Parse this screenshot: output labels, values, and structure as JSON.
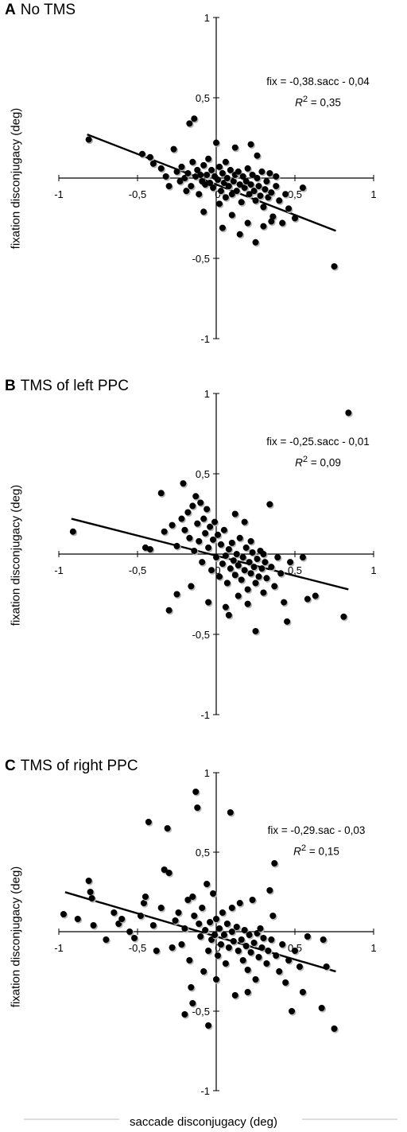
{
  "chart_data": [
    {
      "type": "scatter",
      "panel_letter": "A",
      "title": "No TMS",
      "ylabel": "fixation disconjugacy (deg)",
      "xlim": [
        -1,
        1
      ],
      "ylim": [
        -1,
        1
      ],
      "x_ticks": [
        "-1",
        "-0,5",
        "0",
        "0,5",
        "1"
      ],
      "y_ticks": [
        "1",
        "0,5",
        "-0,5",
        "-1"
      ],
      "equation": "fix = -0,38.sacc - 0,04",
      "r2_label": "R",
      "r2_value": " = 0,35",
      "fit": {
        "slope": -0.38,
        "intercept": -0.04,
        "x_range": [
          -0.82,
          0.76
        ]
      },
      "points": [
        [
          -0.81,
          0.24
        ],
        [
          -0.47,
          0.15
        ],
        [
          -0.42,
          0.13
        ],
        [
          -0.4,
          0.09
        ],
        [
          -0.35,
          0.06
        ],
        [
          -0.32,
          0.01
        ],
        [
          -0.3,
          -0.05
        ],
        [
          -0.27,
          0.18
        ],
        [
          -0.25,
          0.04
        ],
        [
          -0.23,
          -0.02
        ],
        [
          -0.22,
          0.07
        ],
        [
          -0.2,
          0.0
        ],
        [
          -0.19,
          -0.08
        ],
        [
          -0.18,
          0.03
        ],
        [
          -0.17,
          0.34
        ],
        [
          -0.16,
          -0.05
        ],
        [
          -0.15,
          0.1
        ],
        [
          -0.14,
          0.37
        ],
        [
          -0.13,
          0.01
        ],
        [
          -0.12,
          0.05
        ],
        [
          -0.11,
          -0.1
        ],
        [
          -0.1,
          0.02
        ],
        [
          -0.09,
          -0.02
        ],
        [
          -0.08,
          0.08
        ],
        [
          -0.07,
          -0.04
        ],
        [
          -0.06,
          0.02
        ],
        [
          -0.05,
          0.12
        ],
        [
          -0.04,
          -0.03
        ],
        [
          -0.03,
          0.05
        ],
        [
          -0.02,
          -0.06
        ],
        [
          -0.01,
          0.01
        ],
        [
          0.0,
          0.22
        ],
        [
          0.01,
          -0.01
        ],
        [
          0.02,
          0.07
        ],
        [
          0.03,
          -0.08
        ],
        [
          0.04,
          0.03
        ],
        [
          0.05,
          -0.03
        ],
        [
          0.06,
          0.1
        ],
        [
          0.06,
          -0.12
        ],
        [
          0.07,
          0.0
        ],
        [
          0.08,
          -0.05
        ],
        [
          0.09,
          0.05
        ],
        [
          0.1,
          -0.1
        ],
        [
          0.11,
          -0.02
        ],
        [
          0.12,
          0.02
        ],
        [
          0.13,
          -0.08
        ],
        [
          0.14,
          0.04
        ],
        [
          0.15,
          -0.04
        ],
        [
          0.16,
          -0.15
        ],
        [
          0.17,
          0.01
        ],
        [
          0.18,
          -0.06
        ],
        [
          0.19,
          -0.02
        ],
        [
          0.2,
          0.06
        ],
        [
          0.21,
          -0.1
        ],
        [
          0.22,
          -0.04
        ],
        [
          0.23,
          0.02
        ],
        [
          0.24,
          -0.08
        ],
        [
          0.25,
          -0.14
        ],
        [
          0.26,
          0.0
        ],
        [
          0.27,
          -0.05
        ],
        [
          0.28,
          -0.11
        ],
        [
          0.29,
          0.04
        ],
        [
          0.3,
          -0.18
        ],
        [
          0.31,
          -0.07
        ],
        [
          0.32,
          -0.02
        ],
        [
          0.33,
          -0.12
        ],
        [
          0.34,
          0.03
        ],
        [
          0.35,
          -0.09
        ],
        [
          0.36,
          -0.24
        ],
        [
          0.38,
          -0.05
        ],
        [
          0.4,
          -0.14
        ],
        [
          0.42,
          -0.28
        ],
        [
          0.44,
          -0.1
        ],
        [
          0.46,
          -0.19
        ],
        [
          0.5,
          -0.25
        ],
        [
          0.55,
          -0.06
        ],
        [
          0.1,
          -0.23
        ],
        [
          0.15,
          -0.35
        ],
        [
          0.2,
          -0.28
        ],
        [
          0.25,
          -0.4
        ],
        [
          0.3,
          -0.3
        ],
        [
          0.35,
          -0.27
        ],
        [
          -0.08,
          -0.21
        ],
        [
          0.02,
          -0.16
        ],
        [
          0.12,
          0.19
        ],
        [
          0.26,
          0.14
        ],
        [
          0.22,
          0.21
        ],
        [
          0.38,
          0.01
        ],
        [
          0.75,
          -0.55
        ],
        [
          0.04,
          -0.31
        ]
      ]
    },
    {
      "type": "scatter",
      "panel_letter": "B",
      "title": "TMS of left PPC",
      "ylabel": "fixation disconjugacy (deg)",
      "xlim": [
        -1,
        1
      ],
      "ylim": [
        -1,
        1
      ],
      "x_ticks": [
        "-1",
        "-0,5",
        "0",
        "0,5",
        "1"
      ],
      "y_ticks": [
        "1",
        "0,5",
        "-0,5",
        "-1"
      ],
      "equation": "fix = -0,25.sacc - 0,01",
      "r2_label": "R",
      "r2_value": " = 0,09",
      "fit": {
        "slope": -0.25,
        "intercept": -0.01,
        "x_range": [
          -0.92,
          0.84
        ]
      },
      "points": [
        [
          -0.91,
          0.14
        ],
        [
          -0.45,
          0.04
        ],
        [
          -0.42,
          0.03
        ],
        [
          -0.35,
          0.38
        ],
        [
          -0.33,
          0.14
        ],
        [
          -0.3,
          -0.35
        ],
        [
          -0.28,
          0.18
        ],
        [
          -0.25,
          0.05
        ],
        [
          -0.22,
          0.22
        ],
        [
          -0.21,
          0.44
        ],
        [
          -0.2,
          0.15
        ],
        [
          -0.18,
          0.26
        ],
        [
          -0.17,
          0.1
        ],
        [
          -0.16,
          -0.2
        ],
        [
          -0.15,
          0.3
        ],
        [
          -0.14,
          0.02
        ],
        [
          -0.13,
          0.36
        ],
        [
          -0.12,
          0.19
        ],
        [
          -0.11,
          0.08
        ],
        [
          -0.1,
          0.32
        ],
        [
          -0.09,
          -0.05
        ],
        [
          -0.08,
          0.22
        ],
        [
          -0.07,
          0.13
        ],
        [
          -0.06,
          0.28
        ],
        [
          -0.05,
          0.04
        ],
        [
          -0.04,
          0.17
        ],
        [
          -0.03,
          -0.1
        ],
        [
          -0.02,
          0.09
        ],
        [
          -0.01,
          0.2
        ],
        [
          0.0,
          -0.02
        ],
        [
          0.01,
          0.12
        ],
        [
          0.02,
          -0.14
        ],
        [
          0.03,
          0.06
        ],
        [
          0.04,
          -0.06
        ],
        [
          0.05,
          0.15
        ],
        [
          0.06,
          -0.01
        ],
        [
          0.07,
          -0.18
        ],
        [
          0.08,
          0.03
        ],
        [
          0.09,
          -0.09
        ],
        [
          0.1,
          0.07
        ],
        [
          0.11,
          -0.04
        ],
        [
          0.12,
          -0.13
        ],
        [
          0.13,
          0.0
        ],
        [
          0.14,
          -0.07
        ],
        [
          0.15,
          0.1
        ],
        [
          0.16,
          -0.16
        ],
        [
          0.17,
          -0.02
        ],
        [
          0.18,
          -0.1
        ],
        [
          0.19,
          0.04
        ],
        [
          0.2,
          -0.22
        ],
        [
          0.21,
          -0.05
        ],
        [
          0.22,
          -0.12
        ],
        [
          0.23,
          0.01
        ],
        [
          0.24,
          -0.08
        ],
        [
          0.25,
          -0.18
        ],
        [
          0.26,
          -0.03
        ],
        [
          0.27,
          -0.14
        ],
        [
          0.28,
          0.02
        ],
        [
          0.29,
          -0.09
        ],
        [
          0.3,
          -0.24
        ],
        [
          0.31,
          -0.05
        ],
        [
          0.32,
          -0.15
        ],
        [
          0.34,
          0.31
        ],
        [
          0.35,
          -0.08
        ],
        [
          0.37,
          -0.2
        ],
        [
          0.39,
          -0.02
        ],
        [
          0.41,
          -0.12
        ],
        [
          0.43,
          -0.3
        ],
        [
          0.45,
          -0.42
        ],
        [
          0.47,
          -0.05
        ],
        [
          0.55,
          -0.02
        ],
        [
          0.58,
          -0.28
        ],
        [
          0.63,
          -0.26
        ],
        [
          0.81,
          -0.39
        ],
        [
          0.84,
          0.88
        ],
        [
          -0.05,
          -0.3
        ],
        [
          0.06,
          -0.33
        ],
        [
          0.14,
          -0.26
        ],
        [
          0.2,
          -0.31
        ],
        [
          0.25,
          -0.48
        ],
        [
          0.12,
          0.25
        ],
        [
          0.18,
          0.2
        ],
        [
          -0.25,
          -0.25
        ],
        [
          0.08,
          -0.38
        ],
        [
          0.3,
          0.0
        ],
        [
          0.22,
          0.08
        ]
      ]
    },
    {
      "type": "scatter",
      "panel_letter": "C",
      "title": "TMS of right PPC",
      "ylabel": "fixation disconjugacy (deg)",
      "xlabel": "saccade disconjugacy (deg)",
      "xlim": [
        -1,
        1
      ],
      "ylim": [
        -1,
        1
      ],
      "x_ticks": [
        "-1",
        "-0,5",
        "0",
        "0,5",
        "1"
      ],
      "y_ticks": [
        "1",
        "0,5",
        "-0,5",
        "-1"
      ],
      "equation": "fix = -0,29.sac - 0,03",
      "r2_label": "R",
      "r2_value": " = 0,15",
      "fit": {
        "slope": -0.29,
        "intercept": -0.03,
        "x_range": [
          -0.96,
          0.76
        ]
      },
      "points": [
        [
          -0.97,
          0.11
        ],
        [
          -0.88,
          0.08
        ],
        [
          -0.81,
          0.32
        ],
        [
          -0.8,
          0.25
        ],
        [
          -0.79,
          0.21
        ],
        [
          -0.78,
          0.04
        ],
        [
          -0.7,
          -0.05
        ],
        [
          -0.65,
          0.12
        ],
        [
          -0.62,
          0.05
        ],
        [
          -0.6,
          0.08
        ],
        [
          -0.55,
          0.0
        ],
        [
          -0.52,
          -0.04
        ],
        [
          -0.48,
          0.1
        ],
        [
          -0.46,
          0.18
        ],
        [
          -0.45,
          0.22
        ],
        [
          -0.43,
          0.69
        ],
        [
          -0.4,
          0.04
        ],
        [
          -0.38,
          -0.12
        ],
        [
          -0.35,
          0.15
        ],
        [
          -0.33,
          0.39
        ],
        [
          -0.31,
          0.65
        ],
        [
          -0.3,
          0.37
        ],
        [
          -0.28,
          -0.1
        ],
        [
          -0.26,
          0.07
        ],
        [
          -0.24,
          0.12
        ],
        [
          -0.22,
          -0.08
        ],
        [
          -0.2,
          0.02
        ],
        [
          -0.18,
          0.2
        ],
        [
          -0.17,
          -0.18
        ],
        [
          -0.16,
          -0.35
        ],
        [
          -0.15,
          -0.45
        ],
        [
          -0.14,
          0.1
        ],
        [
          -0.13,
          0.88
        ],
        [
          -0.12,
          0.78
        ],
        [
          -0.11,
          0.05
        ],
        [
          -0.1,
          -0.03
        ],
        [
          -0.09,
          0.15
        ],
        [
          -0.08,
          -0.25
        ],
        [
          -0.07,
          0.01
        ],
        [
          -0.06,
          0.3
        ],
        [
          -0.05,
          -0.12
        ],
        [
          -0.04,
          0.06
        ],
        [
          -0.03,
          -0.05
        ],
        [
          -0.02,
          0.24
        ],
        [
          -0.01,
          -0.02
        ],
        [
          0.0,
          0.08
        ],
        [
          0.01,
          -0.15
        ],
        [
          0.02,
          0.02
        ],
        [
          0.03,
          -0.08
        ],
        [
          0.04,
          0.12
        ],
        [
          0.05,
          -0.02
        ],
        [
          0.06,
          -0.2
        ],
        [
          0.07,
          0.05
        ],
        [
          0.08,
          -0.1
        ],
        [
          0.09,
          0.75
        ],
        [
          0.1,
          0.0
        ],
        [
          0.11,
          -0.06
        ],
        [
          0.12,
          -0.4
        ],
        [
          0.13,
          0.03
        ],
        [
          0.14,
          -0.12
        ],
        [
          0.15,
          0.18
        ],
        [
          0.16,
          -0.05
        ],
        [
          0.17,
          -0.18
        ],
        [
          0.18,
          0.01
        ],
        [
          0.19,
          -0.09
        ],
        [
          0.2,
          -0.24
        ],
        [
          0.21,
          -0.02
        ],
        [
          0.22,
          -0.13
        ],
        [
          0.23,
          0.2
        ],
        [
          0.24,
          -0.07
        ],
        [
          0.25,
          -0.3
        ],
        [
          0.26,
          -0.01
        ],
        [
          0.27,
          -0.16
        ],
        [
          0.28,
          0.02
        ],
        [
          0.29,
          -0.1
        ],
        [
          0.3,
          -0.04
        ],
        [
          0.32,
          -0.2
        ],
        [
          0.33,
          -0.12
        ],
        [
          0.34,
          0.26
        ],
        [
          0.35,
          -0.05
        ],
        [
          0.36,
          0.1
        ],
        [
          0.37,
          0.43
        ],
        [
          0.38,
          -0.15
        ],
        [
          0.4,
          -0.25
        ],
        [
          0.42,
          -0.08
        ],
        [
          0.44,
          -0.32
        ],
        [
          0.46,
          -0.18
        ],
        [
          0.48,
          -0.5
        ],
        [
          0.5,
          -0.12
        ],
        [
          0.53,
          -0.22
        ],
        [
          0.55,
          -0.38
        ],
        [
          0.58,
          -0.03
        ],
        [
          0.67,
          -0.48
        ],
        [
          0.68,
          -0.05
        ],
        [
          0.7,
          -0.22
        ],
        [
          0.75,
          -0.61
        ],
        [
          -0.2,
          -0.52
        ],
        [
          -0.05,
          -0.59
        ],
        [
          0.0,
          -0.3
        ],
        [
          0.2,
          -0.38
        ],
        [
          0.1,
          0.15
        ],
        [
          -0.15,
          0.22
        ]
      ]
    }
  ]
}
